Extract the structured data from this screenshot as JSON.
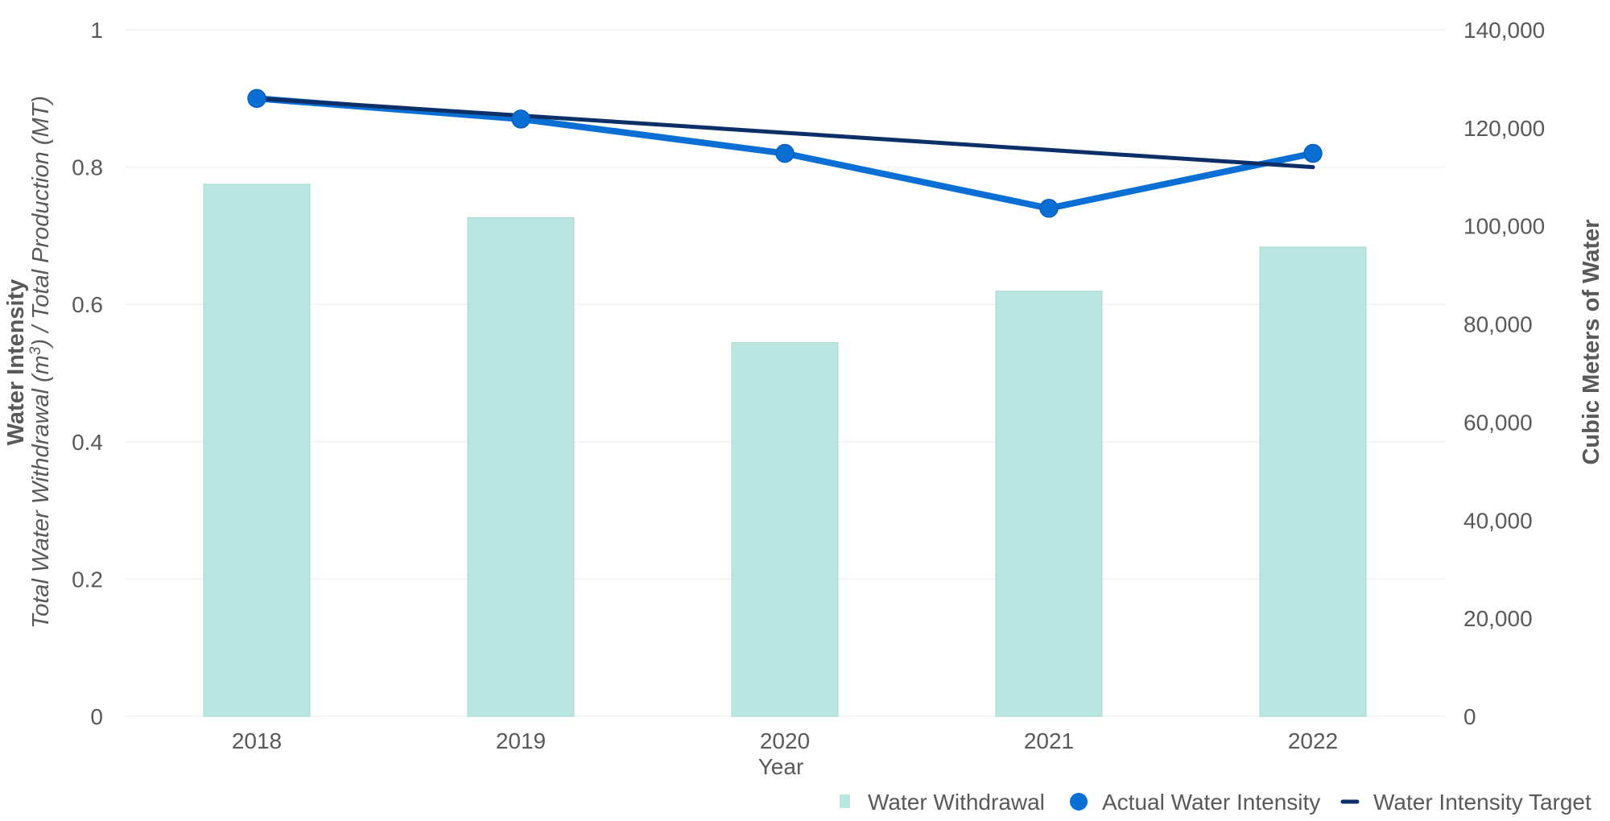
{
  "chart_data": {
    "type": "bar",
    "categories": [
      "2018",
      "2019",
      "2020",
      "2021",
      "2022"
    ],
    "xlabel": "Year",
    "ylabel_left_line1": "Water Intensity",
    "ylabel_left_line2_pre": "Total Water Withdrawal (m",
    "ylabel_left_line2_sup": "3",
    "ylabel_left_line2_post": ") / Total Production (MT)",
    "ylabel_right": "Cubic Meters of Water",
    "ylim_left": [
      0,
      1
    ],
    "yticks_left": [
      "0",
      "0.2",
      "0.4",
      "0.6",
      "0.8",
      "1"
    ],
    "ylim_right": [
      0,
      140000
    ],
    "yticks_right": [
      "0",
      "20,000",
      "40,000",
      "60,000",
      "80,000",
      "100,000",
      "120,000",
      "140,000"
    ],
    "grid": true,
    "legend_position": "bottom-right",
    "series": [
      {
        "name": "Water Withdrawal",
        "type": "bar",
        "axis": "right",
        "color": "#b9e6e0",
        "values": [
          108500,
          101700,
          76200,
          86700,
          95700
        ]
      },
      {
        "name": "Actual Water Intensity",
        "type": "line-markers",
        "axis": "left",
        "color": "#0a6fd4",
        "values": [
          0.9,
          0.87,
          0.82,
          0.74,
          0.82
        ]
      },
      {
        "name": "Water Intensity Target",
        "type": "line",
        "axis": "left",
        "color": "#0b2f66",
        "values": [
          0.9,
          0.875,
          0.85,
          0.825,
          0.8
        ]
      }
    ]
  }
}
